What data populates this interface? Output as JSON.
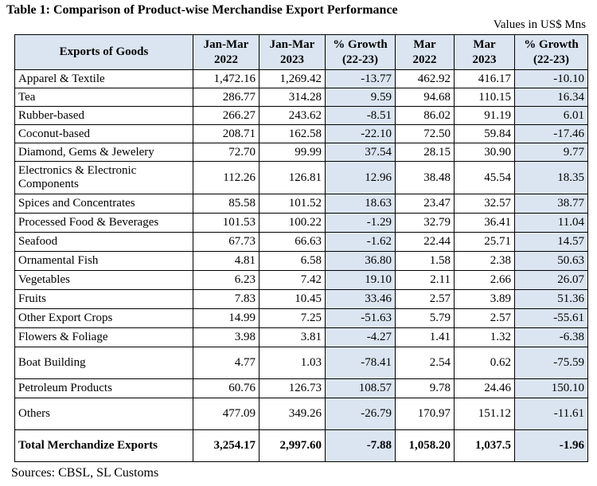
{
  "title": "Table 1: Comparison of Product-wise Merchandise Export Performance",
  "units": "Values in US$ Mns",
  "headers": {
    "goods": "Exports of Goods",
    "jm2022_a": "Jan-Mar",
    "jm2022_b": "2022",
    "jm2023_a": "Jan-Mar",
    "jm2023_b": "2023",
    "g1_a": "% Growth",
    "g1_b": "(22-23)",
    "m2022_a": "Mar",
    "m2022_b": "2022",
    "m2023_a": "Mar",
    "m2023_b": "2023",
    "g2_a": "% Growth",
    "g2_b": "(22-23)"
  },
  "rows": [
    {
      "name": "Apparel & Textile",
      "jm22": "1,472.16",
      "jm23": "1,269.42",
      "g1": "-13.77",
      "m22": "462.92",
      "m23": "416.17",
      "g2": "-10.10"
    },
    {
      "name": "Tea",
      "jm22": "286.77",
      "jm23": "314.28",
      "g1": "9.59",
      "m22": "94.68",
      "m23": "110.15",
      "g2": "16.34"
    },
    {
      "name": "Rubber-based",
      "jm22": "266.27",
      "jm23": "243.62",
      "g1": "-8.51",
      "m22": "86.02",
      "m23": "91.19",
      "g2": "6.01"
    },
    {
      "name": "Coconut-based",
      "jm22": "208.71",
      "jm23": "162.58",
      "g1": "-22.10",
      "m22": "72.50",
      "m23": "59.84",
      "g2": "-17.46"
    },
    {
      "name": "Diamond, Gems & Jewelery",
      "jm22": "72.70",
      "jm23": "99.99",
      "g1": "37.54",
      "m22": "28.15",
      "m23": "30.90",
      "g2": "9.77"
    },
    {
      "name": "Electronics & Electronic Components",
      "jm22": "112.26",
      "jm23": "126.81",
      "g1": "12.96",
      "m22": "38.48",
      "m23": "45.54",
      "g2": "18.35"
    },
    {
      "name": "Spices and Concentrates",
      "jm22": "85.58",
      "jm23": "101.52",
      "g1": "18.63",
      "m22": "23.47",
      "m23": "32.57",
      "g2": "38.77"
    },
    {
      "name": "Processed Food & Beverages",
      "jm22": "101.53",
      "jm23": "100.22",
      "g1": "-1.29",
      "m22": "32.79",
      "m23": "36.41",
      "g2": "11.04"
    },
    {
      "name": "Seafood",
      "jm22": "67.73",
      "jm23": "66.63",
      "g1": "-1.62",
      "m22": "22.44",
      "m23": "25.71",
      "g2": "14.57"
    },
    {
      "name": "Ornamental Fish",
      "jm22": "4.81",
      "jm23": "6.58",
      "g1": "36.80",
      "m22": "1.58",
      "m23": "2.38",
      "g2": "50.63"
    },
    {
      "name": "Vegetables",
      "jm22": "6.23",
      "jm23": "7.42",
      "g1": "19.10",
      "m22": "2.11",
      "m23": "2.66",
      "g2": "26.07"
    },
    {
      "name": "Fruits",
      "jm22": "7.83",
      "jm23": "10.45",
      "g1": "33.46",
      "m22": "2.57",
      "m23": "3.89",
      "g2": "51.36"
    },
    {
      "name": "Other Export Crops",
      "jm22": "14.99",
      "jm23": "7.25",
      "g1": "-51.63",
      "m22": "5.79",
      "m23": "2.57",
      "g2": "-55.61"
    },
    {
      "name": "Flowers & Foliage",
      "jm22": "3.98",
      "jm23": "3.81",
      "g1": "-4.27",
      "m22": "1.41",
      "m23": "1.32",
      "g2": "-6.38"
    },
    {
      "name": "Boat Building",
      "jm22": "4.77",
      "jm23": "1.03",
      "g1": "-78.41",
      "m22": "2.54",
      "m23": "0.62",
      "g2": "-75.59"
    },
    {
      "name": "Petroleum Products",
      "jm22": "60.76",
      "jm23": "126.73",
      "g1": "108.57",
      "m22": "9.78",
      "m23": "24.46",
      "g2": "150.10"
    },
    {
      "name": "Others",
      "jm22": "477.09",
      "jm23": "349.26",
      "g1": "-26.79",
      "m22": "170.97",
      "m23": "151.12",
      "g2": "-11.61"
    }
  ],
  "total": {
    "name": "Total Merchandize Exports",
    "jm22": "3,254.17",
    "jm23": "2,997.60",
    "g1": "-7.88",
    "m22": "1,058.20",
    "m23": "1,037.5",
    "g2": "-1.96"
  },
  "source": "Sources: CBSL, SL Customs",
  "colors": {
    "header_shade": "#dbe5f1"
  }
}
